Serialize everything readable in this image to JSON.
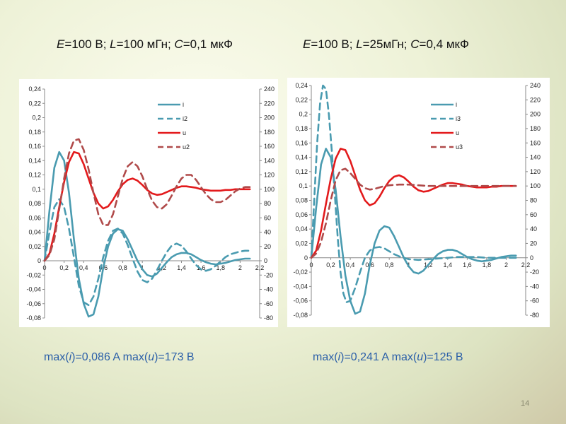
{
  "captions": [
    {
      "e": "E",
      "e_val": "=100 В; ",
      "l": "L",
      "l_val": "=100 мГн; ",
      "c": "C",
      "c_val": "=0,1 мкФ"
    },
    {
      "e": "E",
      "e_val": "=100 В; ",
      "l": "L",
      "l_val": "=25мГн; ",
      "c": "C",
      "c_val": "=0,4 мкФ"
    }
  ],
  "max_lines": [
    {
      "p1": "max(",
      "v1": "i",
      "p2": ")=0,086 A  max(",
      "v2": "u",
      "p3": ")=173 В"
    },
    {
      "p1": "max(",
      "v1": "i",
      "p2": ")=0,241 A  max(",
      "v2": "u",
      "p3": ")=125 В"
    }
  ],
  "slide_number": "14",
  "colors": {
    "i": "#4a9bb0",
    "u": "#e31a1c",
    "u2": "#b04a4a"
  },
  "chart_data": [
    {
      "type": "line",
      "xlim": [
        0,
        2.2
      ],
      "ylim_left": [
        -0.08,
        0.24
      ],
      "ylim_right": [
        -80,
        240
      ],
      "x_ticks": [
        "0",
        "0,2",
        "0,4",
        "0,6",
        "0,8",
        "1",
        "1,2",
        "1,4",
        "1,6",
        "1,8",
        "2",
        "2,2"
      ],
      "y_left_ticks": [
        "-0,08",
        "-0,06",
        "-0,04",
        "-0,02",
        "0",
        "0,02",
        "0,04",
        "0,06",
        "0,08",
        "0,1",
        "0,12",
        "0,14",
        "0,16",
        "0,18",
        "0,2",
        "0,22",
        "0,24"
      ],
      "y_right_ticks": [
        "-80",
        "-60",
        "-40",
        "-20",
        "0",
        "20",
        "40",
        "60",
        "80",
        "100",
        "120",
        "140",
        "160",
        "180",
        "200",
        "220",
        "240"
      ],
      "legend": [
        "i",
        "i2",
        "u",
        "u2"
      ],
      "legend_placement": "top-right",
      "grid": false,
      "series": [
        {
          "name": "i",
          "axis": "left",
          "dash": false,
          "x": [
            0,
            0.05,
            0.1,
            0.15,
            0.2,
            0.25,
            0.3,
            0.35,
            0.4,
            0.45,
            0.5,
            0.55,
            0.6,
            0.65,
            0.7,
            0.75,
            0.8,
            0.85,
            0.9,
            0.95,
            1.0,
            1.05,
            1.1,
            1.15,
            1.2,
            1.25,
            1.3,
            1.35,
            1.4,
            1.45,
            1.5,
            1.55,
            1.6,
            1.65,
            1.7,
            1.75,
            1.8,
            1.85,
            1.9,
            1.95,
            2.0,
            2.05,
            2.1
          ],
          "y": [
            0,
            0.07,
            0.13,
            0.152,
            0.14,
            0.095,
            0.03,
            -0.025,
            -0.06,
            -0.078,
            -0.075,
            -0.05,
            -0.01,
            0.02,
            0.038,
            0.044,
            0.042,
            0.03,
            0.015,
            0.0,
            -0.012,
            -0.02,
            -0.022,
            -0.018,
            -0.01,
            -0.002,
            0.005,
            0.009,
            0.011,
            0.011,
            0.009,
            0.005,
            0.001,
            -0.002,
            -0.004,
            -0.005,
            -0.004,
            -0.003,
            -0.001,
            0.001,
            0.002,
            0.003,
            0.003
          ]
        },
        {
          "name": "i2",
          "axis": "left",
          "dash": true,
          "x": [
            0,
            0.05,
            0.1,
            0.15,
            0.2,
            0.25,
            0.3,
            0.35,
            0.4,
            0.45,
            0.5,
            0.55,
            0.6,
            0.65,
            0.7,
            0.75,
            0.8,
            0.85,
            0.9,
            0.95,
            1.0,
            1.05,
            1.1,
            1.15,
            1.2,
            1.25,
            1.3,
            1.35,
            1.4,
            1.45,
            1.5,
            1.55,
            1.6,
            1.65,
            1.7,
            1.75,
            1.8,
            1.85,
            1.9,
            1.95,
            2.0,
            2.05,
            2.1
          ],
          "y": [
            0,
            0.04,
            0.075,
            0.086,
            0.075,
            0.045,
            0.005,
            -0.035,
            -0.058,
            -0.062,
            -0.05,
            -0.025,
            0.005,
            0.028,
            0.042,
            0.045,
            0.038,
            0.022,
            0.003,
            -0.015,
            -0.027,
            -0.03,
            -0.025,
            -0.013,
            0.0,
            0.012,
            0.021,
            0.024,
            0.021,
            0.013,
            0.003,
            -0.006,
            -0.012,
            -0.014,
            -0.012,
            -0.007,
            -0.001,
            0.005,
            0.009,
            0.011,
            0.013,
            0.014,
            0.014
          ]
        },
        {
          "name": "u",
          "axis": "right",
          "dash": false,
          "x": [
            0,
            0.05,
            0.1,
            0.15,
            0.2,
            0.25,
            0.3,
            0.35,
            0.4,
            0.45,
            0.5,
            0.55,
            0.6,
            0.65,
            0.7,
            0.75,
            0.8,
            0.85,
            0.9,
            0.95,
            1.0,
            1.05,
            1.1,
            1.15,
            1.2,
            1.25,
            1.3,
            1.35,
            1.4,
            1.45,
            1.5,
            1.55,
            1.6,
            1.65,
            1.7,
            1.75,
            1.8,
            1.85,
            1.9,
            1.95,
            2.0,
            2.05,
            2.1
          ],
          "y": [
            0,
            10,
            38,
            75,
            110,
            138,
            152,
            150,
            135,
            115,
            95,
            80,
            73,
            76,
            85,
            97,
            107,
            113,
            115,
            112,
            106,
            99,
            94,
            92,
            93,
            96,
            99,
            102,
            104,
            104,
            103,
            102,
            100,
            99,
            98,
            98,
            98,
            99,
            99,
            100,
            100,
            100,
            100
          ]
        },
        {
          "name": "u2",
          "axis": "right",
          "dash": true,
          "x": [
            0,
            0.05,
            0.1,
            0.15,
            0.2,
            0.25,
            0.3,
            0.35,
            0.4,
            0.45,
            0.5,
            0.55,
            0.6,
            0.65,
            0.7,
            0.75,
            0.8,
            0.85,
            0.9,
            0.95,
            1.0,
            1.05,
            1.1,
            1.15,
            1.2,
            1.25,
            1.3,
            1.35,
            1.4,
            1.45,
            1.5,
            1.55,
            1.6,
            1.65,
            1.7,
            1.75,
            1.8,
            1.85,
            1.9,
            1.95,
            2.0,
            2.05,
            2.1
          ],
          "y": [
            0,
            8,
            30,
            72,
            115,
            150,
            168,
            170,
            155,
            128,
            95,
            65,
            50,
            50,
            65,
            90,
            115,
            132,
            138,
            132,
            118,
            100,
            84,
            75,
            73,
            79,
            91,
            104,
            115,
            120,
            120,
            113,
            103,
            93,
            86,
            82,
            82,
            85,
            91,
            97,
            101,
            103,
            103
          ]
        }
      ]
    },
    {
      "type": "line",
      "xlim": [
        0,
        2.2
      ],
      "ylim_left": [
        -0.08,
        0.24
      ],
      "ylim_right": [
        -80,
        240
      ],
      "x_ticks": [
        "0",
        "0,2",
        "0,4",
        "0,6",
        "0,8",
        "1",
        "1,2",
        "1,4",
        "1,6",
        "1,8",
        "2",
        "2,2"
      ],
      "y_left_ticks": [
        "-0,08",
        "-0,06",
        "-0,04",
        "-0,02",
        "0",
        "0,02",
        "0,04",
        "0,06",
        "0,08",
        "0,1",
        "0,12",
        "0,14",
        "0,16",
        "0,18",
        "0,2",
        "0,22",
        "0,24"
      ],
      "y_right_ticks": [
        "-80",
        "-60",
        "-40",
        "-20",
        "0",
        "20",
        "40",
        "60",
        "80",
        "100",
        "120",
        "140",
        "160",
        "180",
        "200",
        "220",
        "240"
      ],
      "legend": [
        "i",
        "i3",
        "u",
        "u3"
      ],
      "legend_placement": "top-right",
      "grid": false,
      "series": [
        {
          "name": "i",
          "axis": "left",
          "dash": false,
          "x": [
            0,
            0.05,
            0.1,
            0.15,
            0.2,
            0.25,
            0.3,
            0.35,
            0.4,
            0.45,
            0.5,
            0.55,
            0.6,
            0.65,
            0.7,
            0.75,
            0.8,
            0.85,
            0.9,
            0.95,
            1.0,
            1.05,
            1.1,
            1.15,
            1.2,
            1.25,
            1.3,
            1.35,
            1.4,
            1.45,
            1.5,
            1.55,
            1.6,
            1.65,
            1.7,
            1.75,
            1.8,
            1.85,
            1.9,
            1.95,
            2.0,
            2.05,
            2.1
          ],
          "y": [
            0,
            0.07,
            0.13,
            0.152,
            0.14,
            0.095,
            0.03,
            -0.025,
            -0.06,
            -0.078,
            -0.075,
            -0.05,
            -0.01,
            0.02,
            0.038,
            0.044,
            0.042,
            0.03,
            0.015,
            0.0,
            -0.012,
            -0.02,
            -0.022,
            -0.018,
            -0.01,
            -0.002,
            0.005,
            0.009,
            0.011,
            0.011,
            0.009,
            0.005,
            0.001,
            -0.002,
            -0.004,
            -0.005,
            -0.004,
            -0.003,
            -0.001,
            0.001,
            0.002,
            0.003,
            0.003
          ]
        },
        {
          "name": "i3",
          "axis": "left",
          "dash": true,
          "x": [
            0,
            0.03,
            0.06,
            0.09,
            0.12,
            0.15,
            0.18,
            0.21,
            0.24,
            0.27,
            0.3,
            0.33,
            0.36,
            0.4,
            0.45,
            0.5,
            0.55,
            0.6,
            0.65,
            0.7,
            0.75,
            0.8,
            0.85,
            0.9,
            0.95,
            1.0,
            1.1,
            1.2,
            1.3,
            1.4,
            1.5,
            1.6,
            1.7,
            1.8,
            1.9,
            2.0,
            2.1
          ],
          "y": [
            0,
            0.08,
            0.16,
            0.215,
            0.24,
            0.235,
            0.2,
            0.15,
            0.09,
            0.03,
            -0.02,
            -0.05,
            -0.062,
            -0.06,
            -0.042,
            -0.02,
            0.0,
            0.01,
            0.014,
            0.015,
            0.013,
            0.009,
            0.005,
            0.002,
            0.0,
            -0.002,
            -0.003,
            -0.002,
            -0.001,
            0.0,
            0.001,
            0.001,
            0.001,
            0.0,
            0.0,
            0.0,
            0.0
          ]
        },
        {
          "name": "u",
          "axis": "right",
          "dash": false,
          "x": [
            0,
            0.05,
            0.1,
            0.15,
            0.2,
            0.25,
            0.3,
            0.35,
            0.4,
            0.45,
            0.5,
            0.55,
            0.6,
            0.65,
            0.7,
            0.75,
            0.8,
            0.85,
            0.9,
            0.95,
            1.0,
            1.05,
            1.1,
            1.15,
            1.2,
            1.25,
            1.3,
            1.35,
            1.4,
            1.45,
            1.5,
            1.55,
            1.6,
            1.65,
            1.7,
            1.75,
            1.8,
            1.85,
            1.9,
            1.95,
            2.0,
            2.05,
            2.1
          ],
          "y": [
            0,
            10,
            38,
            75,
            110,
            138,
            152,
            150,
            135,
            115,
            95,
            80,
            73,
            76,
            85,
            97,
            107,
            113,
            115,
            112,
            106,
            99,
            94,
            92,
            93,
            96,
            99,
            102,
            104,
            104,
            103,
            102,
            100,
            99,
            98,
            98,
            98,
            99,
            99,
            100,
            100,
            100,
            100
          ]
        },
        {
          "name": "u3",
          "axis": "right",
          "dash": true,
          "x": [
            0,
            0.05,
            0.1,
            0.15,
            0.2,
            0.25,
            0.3,
            0.35,
            0.4,
            0.45,
            0.5,
            0.55,
            0.6,
            0.65,
            0.7,
            0.75,
            0.8,
            0.9,
            1.0,
            1.1,
            1.2,
            1.3,
            1.4,
            1.5,
            1.6,
            1.7,
            1.8,
            1.9,
            2.0,
            2.1
          ],
          "y": [
            0,
            6,
            22,
            48,
            80,
            108,
            122,
            124,
            118,
            110,
            102,
            97,
            95,
            96,
            98,
            100,
            101,
            102,
            102,
            101,
            100,
            100,
            100,
            100,
            100,
            100,
            100,
            100,
            100,
            100
          ]
        }
      ]
    }
  ]
}
